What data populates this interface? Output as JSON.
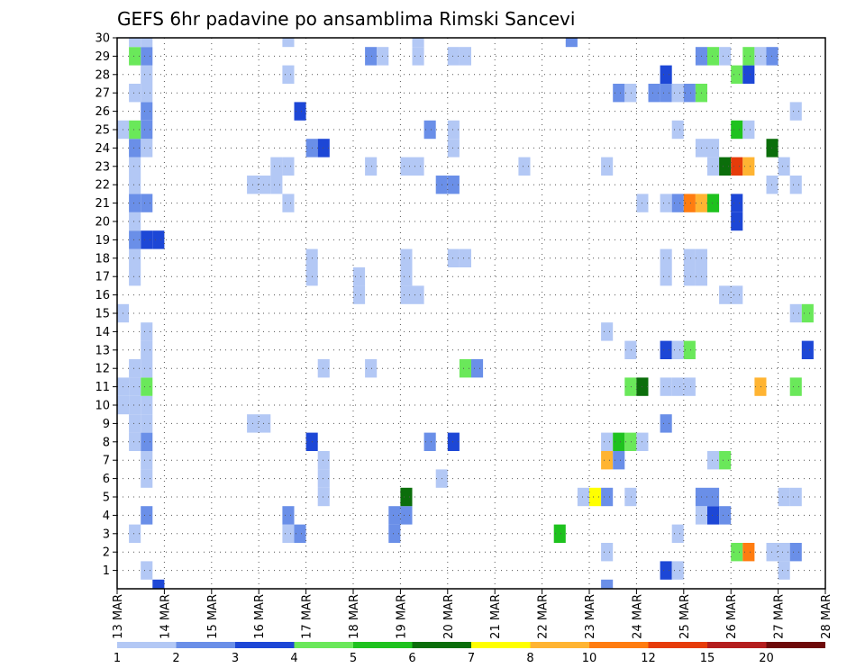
{
  "chart_data": {
    "type": "heatmap",
    "title": "GEFS 6hr padavine po ansamblima Rimski Sancevi",
    "x_ticks": [
      "13 MAR",
      "14 MAR",
      "15 MAR",
      "16 MAR",
      "17 MAR",
      "18 MAR",
      "19 MAR",
      "20 MAR",
      "21 MAR",
      "22 MAR",
      "23 MAR",
      "24 MAR",
      "25 MAR",
      "26 MAR",
      "27 MAR",
      "28 MAR"
    ],
    "y_ticks": [
      "1",
      "2",
      "3",
      "4",
      "5",
      "6",
      "7",
      "8",
      "9",
      "10",
      "11",
      "12",
      "13",
      "14",
      "15",
      "16",
      "17",
      "18",
      "19",
      "20",
      "21",
      "22",
      "23",
      "24",
      "25",
      "26",
      "27",
      "28",
      "29",
      "30"
    ],
    "y_range": [
      0,
      30
    ],
    "time_step": "6hr",
    "grid": true,
    "colorbar": {
      "position": "bottom",
      "labels": [
        "1",
        "2",
        "3",
        "4",
        "5",
        "6",
        "7",
        "8",
        "10",
        "12",
        "15",
        "20"
      ],
      "colors": [
        "#b3c8f5",
        "#6a8fe8",
        "#1d47d6",
        "#6ae85a",
        "#1ec21e",
        "#0b6e0b",
        "#ffff00",
        "#ffb432",
        "#ff7c10",
        "#e63c0a",
        "#b41e1e",
        "#6e0a0a"
      ]
    },
    "cells": [
      {
        "d": "13 MAR 18",
        "m": 1,
        "cat": 1
      },
      {
        "d": "13 MAR 18",
        "m": 4,
        "cat": 2
      },
      {
        "d": "13 MAR 18",
        "m": 6,
        "cat": 1
      },
      {
        "d": "13 MAR 18",
        "m": 7,
        "cat": 1
      },
      {
        "d": "13 MAR 18",
        "m": 8,
        "cat": 2
      },
      {
        "d": "13 MAR 18",
        "m": 9,
        "cat": 1
      },
      {
        "d": "13 MAR 18",
        "m": 10,
        "cat": 1
      },
      {
        "d": "13 MAR 18",
        "m": 11,
        "cat": 4
      },
      {
        "d": "13 MAR 18",
        "m": 12,
        "cat": 1
      },
      {
        "d": "13 MAR 18",
        "m": 13,
        "cat": 1
      },
      {
        "d": "13 MAR 18",
        "m": 14,
        "cat": 1
      },
      {
        "d": "13 MAR 18",
        "m": 19,
        "cat": 3
      },
      {
        "d": "13 MAR 18",
        "m": 21,
        "cat": 2
      },
      {
        "d": "13 MAR 18",
        "m": 24,
        "cat": 1
      },
      {
        "d": "13 MAR 18",
        "m": 25,
        "cat": 2
      },
      {
        "d": "13 MAR 18",
        "m": 26,
        "cat": 2
      },
      {
        "d": "13 MAR 18",
        "m": 27,
        "cat": 1
      },
      {
        "d": "13 MAR 18",
        "m": 28,
        "cat": 1
      },
      {
        "d": "13 MAR 18",
        "m": 29,
        "cat": 2
      },
      {
        "d": "13 MAR 18",
        "m": 30,
        "cat": 1
      },
      {
        "d": "13 MAR 12",
        "m": 3,
        "cat": 1
      },
      {
        "d": "13 MAR 12",
        "m": 8,
        "cat": 1
      },
      {
        "d": "13 MAR 12",
        "m": 9,
        "cat": 1
      },
      {
        "d": "13 MAR 12",
        "m": 10,
        "cat": 1
      },
      {
        "d": "13 MAR 12",
        "m": 11,
        "cat": 1
      },
      {
        "d": "13 MAR 12",
        "m": 12,
        "cat": 1
      },
      {
        "d": "13 MAR 12",
        "m": 17,
        "cat": 1
      },
      {
        "d": "13 MAR 12",
        "m": 18,
        "cat": 1
      },
      {
        "d": "13 MAR 12",
        "m": 19,
        "cat": 2
      },
      {
        "d": "13 MAR 12",
        "m": 20,
        "cat": 1
      },
      {
        "d": "13 MAR 12",
        "m": 21,
        "cat": 2
      },
      {
        "d": "13 MAR 12",
        "m": 22,
        "cat": 1
      },
      {
        "d": "13 MAR 12",
        "m": 23,
        "cat": 1
      },
      {
        "d": "13 MAR 12",
        "m": 24,
        "cat": 2
      },
      {
        "d": "13 MAR 12",
        "m": 25,
        "cat": 4
      },
      {
        "d": "13 MAR 12",
        "m": 27,
        "cat": 1
      },
      {
        "d": "13 MAR 12",
        "m": 29,
        "cat": 4
      },
      {
        "d": "13 MAR 12",
        "m": 30,
        "cat": 1
      },
      {
        "d": "13 MAR 06",
        "m": 10,
        "cat": 1
      },
      {
        "d": "13 MAR 06",
        "m": 11,
        "cat": 1
      },
      {
        "d": "13 MAR 06",
        "m": 15,
        "cat": 1
      },
      {
        "d": "13 MAR 06",
        "m": 25,
        "cat": 1
      },
      {
        "d": "14 MAR 00",
        "m": 0,
        "cat": 3
      },
      {
        "d": "14 MAR 00",
        "m": 19,
        "cat": 3
      },
      {
        "d": "16 MAR 00",
        "m": 9,
        "cat": 1
      },
      {
        "d": "16 MAR 06",
        "m": 9,
        "cat": 1
      },
      {
        "d": "16 MAR 00",
        "m": 22,
        "cat": 1
      },
      {
        "d": "16 MAR 06",
        "m": 22,
        "cat": 1
      },
      {
        "d": "16 MAR 12",
        "m": 22,
        "cat": 1
      },
      {
        "d": "16 MAR 12",
        "m": 23,
        "cat": 1
      },
      {
        "d": "16 MAR 18",
        "m": 23,
        "cat": 1
      },
      {
        "d": "16 MAR 18",
        "m": 21,
        "cat": 1
      },
      {
        "d": "16 MAR 18",
        "m": 28,
        "cat": 1
      },
      {
        "d": "16 MAR 18",
        "m": 30,
        "cat": 1
      },
      {
        "d": "16 MAR 18",
        "m": 3,
        "cat": 1
      },
      {
        "d": "16 MAR 18",
        "m": 4,
        "cat": 2
      },
      {
        "d": "17 MAR 00",
        "m": 3,
        "cat": 2
      },
      {
        "d": "17 MAR 00",
        "m": 26,
        "cat": 3
      },
      {
        "d": "17 MAR 06",
        "m": 17,
        "cat": 1
      },
      {
        "d": "17 MAR 06",
        "m": 18,
        "cat": 1
      },
      {
        "d": "17 MAR 06",
        "m": 8,
        "cat": 3
      },
      {
        "d": "17 MAR 06",
        "m": 24,
        "cat": 2
      },
      {
        "d": "17 MAR 12",
        "m": 24,
        "cat": 3
      },
      {
        "d": "17 MAR 12",
        "m": 5,
        "cat": 1
      },
      {
        "d": "17 MAR 12",
        "m": 6,
        "cat": 1
      },
      {
        "d": "17 MAR 12",
        "m": 7,
        "cat": 1
      },
      {
        "d": "17 MAR 12",
        "m": 12,
        "cat": 1
      },
      {
        "d": "18 MAR 06",
        "m": 16,
        "cat": 1
      },
      {
        "d": "18 MAR 06",
        "m": 17,
        "cat": 1
      },
      {
        "d": "18 MAR 12",
        "m": 12,
        "cat": 1
      },
      {
        "d": "18 MAR 12",
        "m": 23,
        "cat": 1
      },
      {
        "d": "18 MAR 12",
        "m": 29,
        "cat": 2
      },
      {
        "d": "18 MAR 18",
        "m": 29,
        "cat": 1
      },
      {
        "d": "19 MAR 00",
        "m": 3,
        "cat": 2
      },
      {
        "d": "19 MAR 00",
        "m": 4,
        "cat": 2
      },
      {
        "d": "19 MAR 06",
        "m": 4,
        "cat": 2
      },
      {
        "d": "19 MAR 06",
        "m": 5,
        "cat": 6
      },
      {
        "d": "19 MAR 06",
        "m": 16,
        "cat": 1
      },
      {
        "d": "19 MAR 06",
        "m": 17,
        "cat": 1
      },
      {
        "d": "19 MAR 06",
        "m": 18,
        "cat": 1
      },
      {
        "d": "19 MAR 12",
        "m": 16,
        "cat": 1
      },
      {
        "d": "19 MAR 06",
        "m": 23,
        "cat": 1
      },
      {
        "d": "19 MAR 12",
        "m": 23,
        "cat": 1
      },
      {
        "d": "19 MAR 12",
        "m": 29,
        "cat": 1
      },
      {
        "d": "19 MAR 12",
        "m": 30,
        "cat": 1
      },
      {
        "d": "19 MAR 18",
        "m": 8,
        "cat": 2
      },
      {
        "d": "19 MAR 18",
        "m": 25,
        "cat": 2
      },
      {
        "d": "20 MAR 00",
        "m": 6,
        "cat": 1
      },
      {
        "d": "20 MAR 00",
        "m": 22,
        "cat": 2
      },
      {
        "d": "20 MAR 06",
        "m": 22,
        "cat": 2
      },
      {
        "d": "20 MAR 06",
        "m": 8,
        "cat": 3
      },
      {
        "d": "20 MAR 06",
        "m": 18,
        "cat": 1
      },
      {
        "d": "20 MAR 12",
        "m": 18,
        "cat": 1
      },
      {
        "d": "20 MAR 06",
        "m": 24,
        "cat": 1
      },
      {
        "d": "20 MAR 06",
        "m": 25,
        "cat": 1
      },
      {
        "d": "20 MAR 06",
        "m": 29,
        "cat": 1
      },
      {
        "d": "20 MAR 12",
        "m": 29,
        "cat": 1
      },
      {
        "d": "20 MAR 12",
        "m": 12,
        "cat": 4
      },
      {
        "d": "20 MAR 18",
        "m": 12,
        "cat": 2
      },
      {
        "d": "21 MAR 18",
        "m": 23,
        "cat": 1
      },
      {
        "d": "22 MAR 12",
        "m": 3,
        "cat": 5
      },
      {
        "d": "22 MAR 18",
        "m": 30,
        "cat": 2
      },
      {
        "d": "23 MAR 00",
        "m": 5,
        "cat": 1
      },
      {
        "d": "23 MAR 06",
        "m": 5,
        "cat": 7
      },
      {
        "d": "23 MAR 12",
        "m": 5,
        "cat": 2
      },
      {
        "d": "23 MAR 12",
        "m": 0,
        "cat": 2
      },
      {
        "d": "23 MAR 12",
        "m": 2,
        "cat": 1
      },
      {
        "d": "23 MAR 12",
        "m": 7,
        "cat": 8
      },
      {
        "d": "23 MAR 12",
        "m": 8,
        "cat": 1
      },
      {
        "d": "23 MAR 12",
        "m": 14,
        "cat": 1
      },
      {
        "d": "23 MAR 12",
        "m": 23,
        "cat": 1
      },
      {
        "d": "23 MAR 18",
        "m": 7,
        "cat": 2
      },
      {
        "d": "23 MAR 18",
        "m": 8,
        "cat": 5
      },
      {
        "d": "23 MAR 18",
        "m": 27,
        "cat": 2
      },
      {
        "d": "24 MAR 00",
        "m": 8,
        "cat": 4
      },
      {
        "d": "24 MAR 00",
        "m": 5,
        "cat": 1
      },
      {
        "d": "24 MAR 00",
        "m": 11,
        "cat": 4
      },
      {
        "d": "24 MAR 00",
        "m": 13,
        "cat": 1
      },
      {
        "d": "24 MAR 00",
        "m": 27,
        "cat": 1
      },
      {
        "d": "24 MAR 06",
        "m": 8,
        "cat": 1
      },
      {
        "d": "24 MAR 06",
        "m": 11,
        "cat": 6
      },
      {
        "d": "24 MAR 06",
        "m": 21,
        "cat": 1
      },
      {
        "d": "24 MAR 12",
        "m": 27,
        "cat": 2
      },
      {
        "d": "24 MAR 18",
        "m": 1,
        "cat": 3
      },
      {
        "d": "24 MAR 18",
        "m": 9,
        "cat": 2
      },
      {
        "d": "24 MAR 18",
        "m": 11,
        "cat": 1
      },
      {
        "d": "24 MAR 18",
        "m": 13,
        "cat": 3
      },
      {
        "d": "24 MAR 18",
        "m": 17,
        "cat": 1
      },
      {
        "d": "24 MAR 18",
        "m": 18,
        "cat": 1
      },
      {
        "d": "24 MAR 18",
        "m": 21,
        "cat": 1
      },
      {
        "d": "24 MAR 18",
        "m": 27,
        "cat": 2
      },
      {
        "d": "24 MAR 18",
        "m": 28,
        "cat": 3
      },
      {
        "d": "25 MAR 00",
        "m": 1,
        "cat": 1
      },
      {
        "d": "25 MAR 00",
        "m": 3,
        "cat": 1
      },
      {
        "d": "25 MAR 00",
        "m": 11,
        "cat": 1
      },
      {
        "d": "25 MAR 00",
        "m": 13,
        "cat": 1
      },
      {
        "d": "25 MAR 00",
        "m": 21,
        "cat": 2
      },
      {
        "d": "25 MAR 00",
        "m": 25,
        "cat": 1
      },
      {
        "d": "25 MAR 00",
        "m": 27,
        "cat": 1
      },
      {
        "d": "25 MAR 06",
        "m": 11,
        "cat": 1
      },
      {
        "d": "25 MAR 06",
        "m": 13,
        "cat": 4
      },
      {
        "d": "25 MAR 06",
        "m": 17,
        "cat": 1
      },
      {
        "d": "25 MAR 06",
        "m": 18,
        "cat": 1
      },
      {
        "d": "25 MAR 06",
        "m": 21,
        "cat": 9
      },
      {
        "d": "25 MAR 06",
        "m": 27,
        "cat": 2
      },
      {
        "d": "25 MAR 12",
        "m": 4,
        "cat": 1
      },
      {
        "d": "25 MAR 12",
        "m": 5,
        "cat": 2
      },
      {
        "d": "25 MAR 12",
        "m": 17,
        "cat": 1
      },
      {
        "d": "25 MAR 12",
        "m": 18,
        "cat": 1
      },
      {
        "d": "25 MAR 12",
        "m": 21,
        "cat": 8
      },
      {
        "d": "25 MAR 12",
        "m": 24,
        "cat": 1
      },
      {
        "d": "25 MAR 12",
        "m": 27,
        "cat": 4
      },
      {
        "d": "25 MAR 12",
        "m": 29,
        "cat": 2
      },
      {
        "d": "25 MAR 18",
        "m": 4,
        "cat": 3
      },
      {
        "d": "25 MAR 18",
        "m": 5,
        "cat": 2
      },
      {
        "d": "25 MAR 18",
        "m": 7,
        "cat": 1
      },
      {
        "d": "25 MAR 18",
        "m": 21,
        "cat": 5
      },
      {
        "d": "25 MAR 18",
        "m": 23,
        "cat": 1
      },
      {
        "d": "25 MAR 18",
        "m": 24,
        "cat": 1
      },
      {
        "d": "25 MAR 18",
        "m": 29,
        "cat": 4
      },
      {
        "d": "26 MAR 00",
        "m": 4,
        "cat": 2
      },
      {
        "d": "26 MAR 00",
        "m": 7,
        "cat": 4
      },
      {
        "d": "26 MAR 00",
        "m": 16,
        "cat": 1
      },
      {
        "d": "26 MAR 00",
        "m": 23,
        "cat": 6
      },
      {
        "d": "26 MAR 00",
        "m": 29,
        "cat": 1
      },
      {
        "d": "26 MAR 06",
        "m": 2,
        "cat": 4
      },
      {
        "d": "26 MAR 06",
        "m": 16,
        "cat": 1
      },
      {
        "d": "26 MAR 06",
        "m": 20,
        "cat": 3
      },
      {
        "d": "26 MAR 06",
        "m": 21,
        "cat": 3
      },
      {
        "d": "26 MAR 06",
        "m": 23,
        "cat": 10
      },
      {
        "d": "26 MAR 06",
        "m": 25,
        "cat": 5
      },
      {
        "d": "26 MAR 06",
        "m": 28,
        "cat": 4
      },
      {
        "d": "26 MAR 12",
        "m": 2,
        "cat": 9
      },
      {
        "d": "26 MAR 12",
        "m": 23,
        "cat": 8
      },
      {
        "d": "26 MAR 12",
        "m": 25,
        "cat": 1
      },
      {
        "d": "26 MAR 12",
        "m": 28,
        "cat": 3
      },
      {
        "d": "26 MAR 12",
        "m": 29,
        "cat": 4
      },
      {
        "d": "26 MAR 18",
        "m": 11,
        "cat": 8
      },
      {
        "d": "26 MAR 18",
        "m": 29,
        "cat": 1
      },
      {
        "d": "27 MAR 00",
        "m": 2,
        "cat": 1
      },
      {
        "d": "27 MAR 00",
        "m": 22,
        "cat": 1
      },
      {
        "d": "27 MAR 00",
        "m": 24,
        "cat": 6
      },
      {
        "d": "27 MAR 00",
        "m": 29,
        "cat": 2
      },
      {
        "d": "27 MAR 06",
        "m": 1,
        "cat": 1
      },
      {
        "d": "27 MAR 06",
        "m": 2,
        "cat": 1
      },
      {
        "d": "27 MAR 06",
        "m": 5,
        "cat": 1
      },
      {
        "d": "27 MAR 06",
        "m": 23,
        "cat": 1
      },
      {
        "d": "27 MAR 12",
        "m": 2,
        "cat": 2
      },
      {
        "d": "27 MAR 12",
        "m": 5,
        "cat": 1
      },
      {
        "d": "27 MAR 12",
        "m": 11,
        "cat": 4
      },
      {
        "d": "27 MAR 12",
        "m": 15,
        "cat": 1
      },
      {
        "d": "27 MAR 12",
        "m": 22,
        "cat": 1
      },
      {
        "d": "27 MAR 12",
        "m": 26,
        "cat": 1
      },
      {
        "d": "27 MAR 18",
        "m": 13,
        "cat": 3
      },
      {
        "d": "27 MAR 18",
        "m": 15,
        "cat": 4
      }
    ]
  }
}
